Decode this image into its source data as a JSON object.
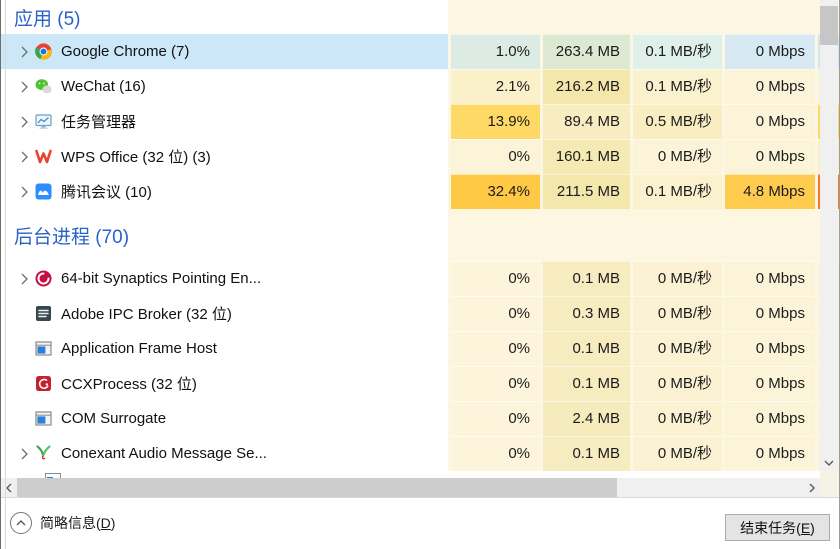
{
  "header_cell_bg": "#fdf6e0",
  "accent": {
    "section_label_color": "#2962c9",
    "selected_row_bg": "#cce8f8",
    "heat_low": "#fcf4d9",
    "heat_high": "#ffc945",
    "overflow_hot": "#f4772a"
  },
  "sections": [
    {
      "label": "应用 (5)",
      "rows": [
        {
          "icon": "chrome-icon",
          "name": "Google Chrome (7)",
          "expandable": true,
          "selected": true,
          "cpu": "1.0%",
          "memory": "263.4 MB",
          "disk": "0.1 MB/秒",
          "network": "0 Mbps",
          "colors": {
            "cpu": "#dcebe3",
            "memory": "#dde9d2",
            "disk": "#dfefe9",
            "network": "#d7e9f2",
            "side": "#cfe6ef"
          }
        },
        {
          "icon": "wechat-icon",
          "name": "WeChat (16)",
          "expandable": true,
          "selected": false,
          "cpu": "2.1%",
          "memory": "216.2 MB",
          "disk": "0.1 MB/秒",
          "network": "0 Mbps",
          "colors": {
            "cpu": "#faf0ca",
            "memory": "#f4e7ac",
            "disk": "#faf1ce",
            "network": "#fcf4d9",
            "side": "#fcf4d9"
          }
        },
        {
          "icon": "taskmgr-icon",
          "name": "任务管理器",
          "expandable": true,
          "selected": false,
          "cpu": "13.9%",
          "memory": "89.4 MB",
          "disk": "0.5 MB/秒",
          "network": "0 Mbps",
          "colors": {
            "cpu": "#ffd965",
            "memory": "#f8edc1",
            "disk": "#f9eec2",
            "network": "#fcf4d9",
            "side": "#ffd965"
          }
        },
        {
          "icon": "wps-icon",
          "name": "WPS Office (32 位) (3)",
          "expandable": true,
          "selected": false,
          "cpu": "0%",
          "memory": "160.1 MB",
          "disk": "0 MB/秒",
          "network": "0 Mbps",
          "colors": {
            "cpu": "#fcf4d9",
            "memory": "#f6eab4",
            "disk": "#fcf4d9",
            "network": "#fcf4d9",
            "side": "#faf0c8"
          }
        },
        {
          "icon": "tencent-meeting-icon",
          "name": "腾讯会议 (10)",
          "expandable": true,
          "selected": false,
          "cpu": "32.4%",
          "memory": "211.5 MB",
          "disk": "0.1 MB/秒",
          "network": "4.8 Mbps",
          "colors": {
            "cpu": "#ffc945",
            "memory": "#f4e7ac",
            "disk": "#faf1ce",
            "network": "#ffcb4f",
            "side": "#f4772a"
          }
        }
      ]
    },
    {
      "label": "后台进程 (70)",
      "rows": [
        {
          "icon": "synaptics-icon",
          "name": "64-bit Synaptics Pointing En...",
          "expandable": true,
          "selected": false,
          "cpu": "0%",
          "memory": "0.1 MB",
          "disk": "0 MB/秒",
          "network": "0 Mbps",
          "colors": {
            "cpu": "#fcf5dc",
            "memory": "#f7ecc0",
            "disk": "#fbf2d3",
            "network": "#fcf4d9",
            "side": "#fcf4d9"
          }
        },
        {
          "icon": "adobe-ipc-icon",
          "name": "Adobe IPC Broker (32 位)",
          "expandable": false,
          "selected": false,
          "cpu": "0%",
          "memory": "0.3 MB",
          "disk": "0 MB/秒",
          "network": "0 Mbps",
          "colors": {
            "cpu": "#fcf5dc",
            "memory": "#f7ecc0",
            "disk": "#fbf2d3",
            "network": "#fcf4d9",
            "side": "#fcf4d9"
          }
        },
        {
          "icon": "app-window-icon",
          "name": "Application Frame Host",
          "expandable": false,
          "selected": false,
          "cpu": "0%",
          "memory": "0.1 MB",
          "disk": "0 MB/秒",
          "network": "0 Mbps",
          "colors": {
            "cpu": "#fcf5dc",
            "memory": "#f7ecc0",
            "disk": "#fbf2d3",
            "network": "#fcf4d9",
            "side": "#fcf4d9"
          }
        },
        {
          "icon": "ccx-icon",
          "name": "CCXProcess (32 位)",
          "expandable": false,
          "selected": false,
          "cpu": "0%",
          "memory": "0.1 MB",
          "disk": "0 MB/秒",
          "network": "0 Mbps",
          "colors": {
            "cpu": "#fcf5dc",
            "memory": "#f7ecc0",
            "disk": "#fbf2d3",
            "network": "#fcf4d9",
            "side": "#fcf4d9"
          }
        },
        {
          "icon": "com-window-icon",
          "name": "COM Surrogate",
          "expandable": false,
          "selected": false,
          "cpu": "0%",
          "memory": "2.4 MB",
          "disk": "0 MB/秒",
          "network": "0 Mbps",
          "colors": {
            "cpu": "#fcf5dc",
            "memory": "#f6ebbc",
            "disk": "#fbf2d3",
            "network": "#fcf4d9",
            "side": "#fcf4d9"
          }
        },
        {
          "icon": "conexant-icon",
          "name": "Conexant Audio Message Se...",
          "expandable": true,
          "selected": false,
          "cpu": "0%",
          "memory": "0.1 MB",
          "disk": "0 MB/秒",
          "network": "0 Mbps",
          "colors": {
            "cpu": "#fcf5dc",
            "memory": "#f7ecc0",
            "disk": "#fbf2d3",
            "network": "#fcf4d9",
            "side": "#fcf4d9"
          }
        }
      ]
    }
  ],
  "footer": {
    "toggle_prefix": "简略信息(",
    "toggle_key": "D",
    "toggle_suffix": ")",
    "end_task_prefix": "结束任务(",
    "end_task_key": "E",
    "end_task_suffix": ")"
  }
}
